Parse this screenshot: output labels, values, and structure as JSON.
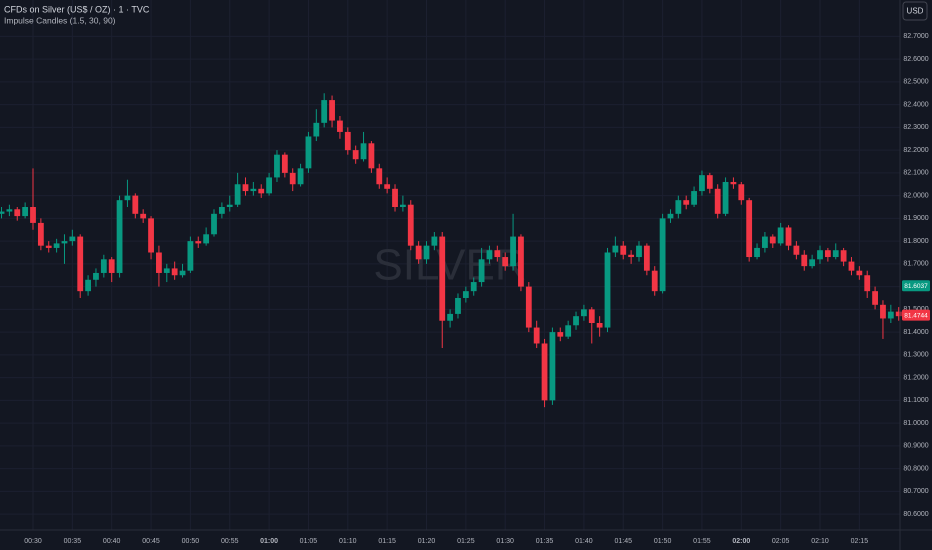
{
  "chart_data": {
    "type": "candlestick",
    "title": "CFDs on Silver (US$ / OZ) · 1 · TVC",
    "subtitle": "Impulse Candles (1.5, 30, 90)",
    "watermark": "SILVER",
    "currency_button": "USD",
    "up_color": "#089981",
    "down_color": "#f23645",
    "grid": true,
    "categories": [
      null,
      null,
      null,
      null,
      "00:30",
      null,
      null,
      null,
      null,
      "00:35",
      null,
      null,
      null,
      null,
      "00:40",
      null,
      null,
      null,
      null,
      "00:45",
      null,
      null,
      null,
      null,
      "00:50",
      null,
      null,
      null,
      null,
      "00:55",
      null,
      null,
      null,
      null,
      "01:00",
      null,
      null,
      null,
      null,
      "01:05",
      null,
      null,
      null,
      null,
      "01:10",
      null,
      null,
      null,
      null,
      "01:15",
      null,
      null,
      null,
      null,
      "01:20",
      null,
      null,
      null,
      null,
      "01:25",
      null,
      null,
      null,
      null,
      "01:30",
      null,
      null,
      null,
      null,
      "01:35",
      null,
      null,
      null,
      null,
      "01:40",
      null,
      null,
      null,
      null,
      "01:45",
      null,
      null,
      null,
      null,
      "01:50",
      null,
      null,
      null,
      null,
      "01:55",
      null,
      null,
      null,
      null,
      "02:00",
      null,
      null,
      null,
      null,
      "02:05",
      null,
      null,
      null,
      null,
      "02:10",
      null,
      null,
      null,
      null,
      "02:15",
      null,
      null,
      null,
      null,
      null
    ],
    "open": [
      81.92,
      81.93,
      81.94,
      81.91,
      81.95,
      81.88,
      81.78,
      81.77,
      81.79,
      81.8,
      81.82,
      81.58,
      81.63,
      81.66,
      81.72,
      81.66,
      81.98,
      82.0,
      81.92,
      81.9,
      81.75,
      81.66,
      81.68,
      81.65,
      81.67,
      81.8,
      81.79,
      81.83,
      81.92,
      81.95,
      81.96,
      82.05,
      82.02,
      82.03,
      82.01,
      82.08,
      82.18,
      82.1,
      82.05,
      82.12,
      82.26,
      82.32,
      82.42,
      82.33,
      82.28,
      82.2,
      82.16,
      82.23,
      82.12,
      82.05,
      82.03,
      81.95,
      81.96,
      81.78,
      81.72,
      81.78,
      81.82,
      81.45,
      81.48,
      81.55,
      81.58,
      81.62,
      81.72,
      81.76,
      81.73,
      81.69,
      81.82,
      81.6,
      81.42,
      81.35,
      81.1,
      81.4,
      81.38,
      81.43,
      81.47,
      81.5,
      81.44,
      81.42,
      81.75,
      81.78,
      81.74,
      81.73,
      81.78,
      81.67,
      81.58,
      81.9,
      81.92,
      81.98,
      81.96,
      82.02,
      82.09,
      82.03,
      81.92,
      82.06,
      82.05,
      81.98,
      81.73,
      81.77,
      81.82,
      81.79,
      81.86,
      81.78,
      81.74,
      81.69,
      81.72,
      81.76,
      81.73,
      81.76,
      81.71,
      81.67,
      81.65,
      81.58,
      81.52,
      81.46,
      81.49
    ],
    "high": [
      81.95,
      81.96,
      81.95,
      81.97,
      82.12,
      81.9,
      81.8,
      81.81,
      81.83,
      81.85,
      81.83,
      81.65,
      81.68,
      81.74,
      81.73,
      82.0,
      82.07,
      82.01,
      81.94,
      81.91,
      81.78,
      81.7,
      81.71,
      81.7,
      81.82,
      81.82,
      81.86,
      81.94,
      81.97,
      82.0,
      82.1,
      82.08,
      82.06,
      82.05,
      82.1,
      82.2,
      82.19,
      82.12,
      82.14,
      82.28,
      82.38,
      82.45,
      82.44,
      82.35,
      82.3,
      82.22,
      82.28,
      82.24,
      82.14,
      82.08,
      82.05,
      82.0,
      81.98,
      81.8,
      81.8,
      81.84,
      81.84,
      81.5,
      81.57,
      81.6,
      81.64,
      81.77,
      81.78,
      81.78,
      81.75,
      81.92,
      81.83,
      81.62,
      81.45,
      81.37,
      81.42,
      81.42,
      81.45,
      81.49,
      81.52,
      81.51,
      81.47,
      81.77,
      81.82,
      81.8,
      81.76,
      81.8,
      81.79,
      81.69,
      81.92,
      81.94,
      82.0,
      82.0,
      82.04,
      82.11,
      82.1,
      82.05,
      82.08,
      82.08,
      82.06,
      81.99,
      81.79,
      81.84,
      81.83,
      81.88,
      81.87,
      81.8,
      81.76,
      81.74,
      81.78,
      81.77,
      81.79,
      81.77,
      81.73,
      81.69,
      81.67,
      81.6,
      81.54,
      81.52,
      81.51
    ],
    "low": [
      81.9,
      81.91,
      81.89,
      81.9,
      81.85,
      81.76,
      81.75,
      81.75,
      81.7,
      81.78,
      81.55,
      81.56,
      81.6,
      81.64,
      81.62,
      81.64,
      81.95,
      81.9,
      81.88,
      81.72,
      81.6,
      81.62,
      81.63,
      81.64,
      81.66,
      81.77,
      81.78,
      81.82,
      81.9,
      81.93,
      81.95,
      82.0,
      82.0,
      81.99,
      82.0,
      82.06,
      82.08,
      82.02,
      82.04,
      82.1,
      82.24,
      82.3,
      82.3,
      82.25,
      82.18,
      82.14,
      82.15,
      82.1,
      82.03,
      82.01,
      81.93,
      81.93,
      81.76,
      81.7,
      81.7,
      81.76,
      81.33,
      81.42,
      81.46,
      81.53,
      81.56,
      81.6,
      81.7,
      81.71,
      81.67,
      81.67,
      81.58,
      81.4,
      81.33,
      81.07,
      81.08,
      81.36,
      81.37,
      81.41,
      81.45,
      81.35,
      81.38,
      81.4,
      81.73,
      81.72,
      81.7,
      81.71,
      81.65,
      81.56,
      81.57,
      81.88,
      81.9,
      81.94,
      81.95,
      82.0,
      82.01,
      81.9,
      81.91,
      82.03,
      81.96,
      81.71,
      81.72,
      81.75,
      81.77,
      81.78,
      81.76,
      81.72,
      81.67,
      81.68,
      81.7,
      81.71,
      81.72,
      81.69,
      81.65,
      81.63,
      81.55,
      81.5,
      81.37,
      81.44,
      81.45
    ],
    "close": [
      81.93,
      81.94,
      81.91,
      81.95,
      81.88,
      81.78,
      81.77,
      81.79,
      81.8,
      81.82,
      81.58,
      81.63,
      81.66,
      81.72,
      81.66,
      81.98,
      82.0,
      81.92,
      81.9,
      81.75,
      81.66,
      81.68,
      81.65,
      81.67,
      81.8,
      81.79,
      81.83,
      81.92,
      81.95,
      81.96,
      82.05,
      82.02,
      82.03,
      82.01,
      82.08,
      82.18,
      82.1,
      82.05,
      82.12,
      82.26,
      82.32,
      82.42,
      82.33,
      82.28,
      82.2,
      82.16,
      82.23,
      82.12,
      82.05,
      82.03,
      81.95,
      81.96,
      81.78,
      81.72,
      81.78,
      81.82,
      81.45,
      81.48,
      81.55,
      81.58,
      81.62,
      81.72,
      81.76,
      81.73,
      81.69,
      81.82,
      81.6,
      81.42,
      81.35,
      81.1,
      81.4,
      81.38,
      81.43,
      81.47,
      81.5,
      81.44,
      81.42,
      81.75,
      81.78,
      81.74,
      81.73,
      81.78,
      81.67,
      81.58,
      81.9,
      81.92,
      81.98,
      81.96,
      82.02,
      82.09,
      82.03,
      81.92,
      82.06,
      82.05,
      81.98,
      81.73,
      81.77,
      81.82,
      81.79,
      81.86,
      81.78,
      81.74,
      81.69,
      81.72,
      81.76,
      81.73,
      81.76,
      81.71,
      81.67,
      81.65,
      81.58,
      81.52,
      81.46,
      81.49,
      81.47
    ],
    "ylim": [
      80.53,
      82.86
    ],
    "yticks": [
      {
        "value": 80.6,
        "label": "80.6000"
      },
      {
        "value": 80.7,
        "label": "80.7000"
      },
      {
        "value": 80.8,
        "label": "80.8000"
      },
      {
        "value": 80.9,
        "label": "80.9000"
      },
      {
        "value": 81.0,
        "label": "81.0000"
      },
      {
        "value": 81.1,
        "label": "81.1000"
      },
      {
        "value": 81.2,
        "label": "81.2000"
      },
      {
        "value": 81.3,
        "label": "81.3000"
      },
      {
        "value": 81.4,
        "label": "81.4000"
      },
      {
        "value": 81.5,
        "label": "81.5000"
      },
      {
        "value": 81.6,
        "label": "81.6000"
      },
      {
        "value": 81.7,
        "label": "81.7000"
      },
      {
        "value": 81.8,
        "label": "81.8000"
      },
      {
        "value": 81.9,
        "label": "81.9000"
      },
      {
        "value": 82.0,
        "label": "82.0000"
      },
      {
        "value": 82.1,
        "label": "82.1000"
      },
      {
        "value": 82.2,
        "label": "82.2000"
      },
      {
        "value": 82.3,
        "label": "82.3000"
      },
      {
        "value": 82.4,
        "label": "82.4000"
      },
      {
        "value": 82.5,
        "label": "82.5000"
      },
      {
        "value": 82.6,
        "label": "82.6000"
      },
      {
        "value": 82.7,
        "label": "82.7000"
      }
    ],
    "price_tags": [
      {
        "value": 81.6037,
        "color": "#089981"
      },
      {
        "value": 81.4744,
        "color": "#f23645"
      }
    ]
  }
}
